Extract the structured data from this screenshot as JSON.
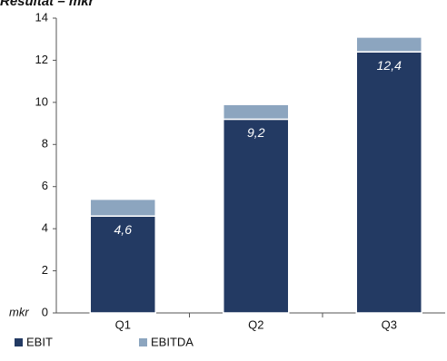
{
  "chart_data": {
    "type": "stacked_bar",
    "title": "Resultat – mkr",
    "y_axis_label": "mkr",
    "categories": [
      "Q1",
      "Q2",
      "Q3"
    ],
    "series": [
      {
        "name": "EBIT",
        "color": "#233a63",
        "values": [
          4.6,
          9.2,
          12.4
        ],
        "value_labels": [
          "4,6",
          "9,2",
          "12,4"
        ]
      },
      {
        "name": "EBITDA",
        "color": "#8ca5bf",
        "values": [
          0.8,
          0.7,
          0.7
        ]
      }
    ],
    "ylim": [
      0,
      14
    ],
    "yticks": [
      0,
      2,
      4,
      6,
      8,
      10,
      12,
      14
    ],
    "grid": false
  }
}
